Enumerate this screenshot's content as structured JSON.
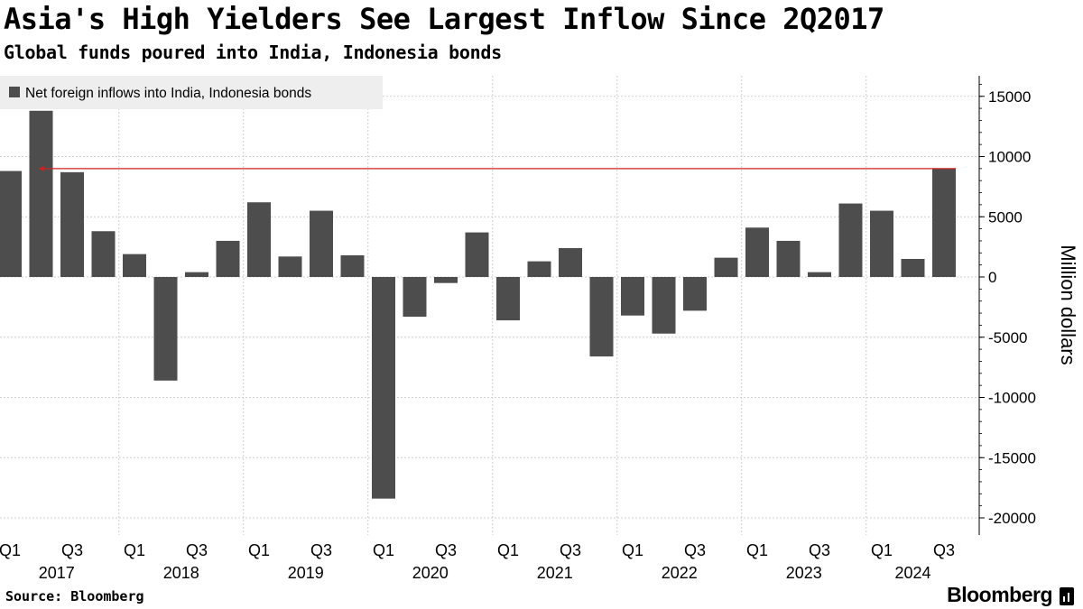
{
  "header": {
    "title": "Asia's High Yielders See Largest Inflow Since 2Q2017",
    "subtitle": "Global funds poured into India, Indonesia bonds"
  },
  "footer": {
    "source": "Source: Bloomberg",
    "brand": "Bloomberg"
  },
  "chart_data": {
    "type": "bar",
    "categories": [
      "Q1 2017",
      "Q2 2017",
      "Q3 2017",
      "Q4 2017",
      "Q1 2018",
      "Q2 2018",
      "Q3 2018",
      "Q4 2018",
      "Q1 2019",
      "Q2 2019",
      "Q3 2019",
      "Q4 2019",
      "Q1 2020",
      "Q2 2020",
      "Q3 2020",
      "Q4 2020",
      "Q1 2021",
      "Q2 2021",
      "Q3 2021",
      "Q4 2021",
      "Q1 2022",
      "Q2 2022",
      "Q3 2022",
      "Q4 2022",
      "Q1 2023",
      "Q2 2023",
      "Q3 2023",
      "Q4 2023",
      "Q1 2024",
      "Q2 2024",
      "Q3 2024"
    ],
    "series": [
      {
        "name": "Net foreign inflows into India, Indonesia bonds",
        "values": [
          8800,
          13800,
          8700,
          3800,
          1900,
          -8600,
          400,
          3000,
          6200,
          1700,
          5500,
          1800,
          -18400,
          -3300,
          -500,
          3700,
          -3600,
          1300,
          2400,
          -6600,
          -3200,
          -4700,
          -2800,
          1600,
          4100,
          3000,
          400,
          6100,
          5500,
          1500,
          9000
        ]
      }
    ],
    "ylabel": "Million dollars",
    "ylim": [
      -20000,
      15000
    ],
    "yticks": [
      15000,
      10000,
      5000,
      0,
      -5000,
      -10000,
      -15000,
      -20000
    ],
    "ytick_labels": [
      "15000",
      "10000",
      "5000",
      "0",
      "-5000",
      "-10000",
      "-15000",
      "-20000"
    ],
    "x_quarter_labels": [
      {
        "label": "Q1",
        "index": 0
      },
      {
        "label": "Q3",
        "index": 2
      },
      {
        "label": "Q1",
        "index": 4
      },
      {
        "label": "Q3",
        "index": 6
      },
      {
        "label": "Q1",
        "index": 8
      },
      {
        "label": "Q3",
        "index": 10
      },
      {
        "label": "Q1",
        "index": 12
      },
      {
        "label": "Q3",
        "index": 14
      },
      {
        "label": "Q1",
        "index": 16
      },
      {
        "label": "Q3",
        "index": 18
      },
      {
        "label": "Q1",
        "index": 20
      },
      {
        "label": "Q3",
        "index": 22
      },
      {
        "label": "Q1",
        "index": 24
      },
      {
        "label": "Q3",
        "index": 26
      },
      {
        "label": "Q1",
        "index": 28
      },
      {
        "label": "Q3",
        "index": 30
      }
    ],
    "x_year_labels": [
      {
        "label": "2017",
        "start": 0
      },
      {
        "label": "2018",
        "start": 4
      },
      {
        "label": "2019",
        "start": 8
      },
      {
        "label": "2020",
        "start": 12
      },
      {
        "label": "2021",
        "start": 16
      },
      {
        "label": "2022",
        "start": 20
      },
      {
        "label": "2023",
        "start": 24
      },
      {
        "label": "2024",
        "start": 28
      }
    ],
    "reference_line": {
      "value": 9000,
      "from_index": 1,
      "to_index": 30
    },
    "grid": true,
    "legend_position": "top-left",
    "colors": {
      "bar": "#4d4d4d",
      "reference": "#cc2222",
      "grid": "#d0d0d0",
      "legend_bg": "#eeeeee"
    }
  }
}
